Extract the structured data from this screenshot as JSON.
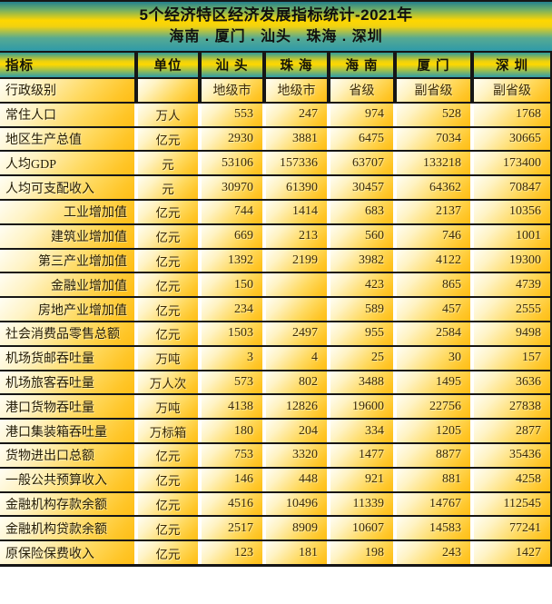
{
  "header": {
    "title": "5个经济特区经济发展指标统计-2021年",
    "subtitle": "海南 . 厦门 . 汕头 . 珠海 . 深圳"
  },
  "table": {
    "columns": [
      {
        "key": "indicator",
        "label": "指标"
      },
      {
        "key": "unit",
        "label": "单位"
      },
      {
        "key": "shantou",
        "label": "汕 头"
      },
      {
        "key": "zhuhai",
        "label": "珠 海"
      },
      {
        "key": "hainan",
        "label": "海 南"
      },
      {
        "key": "xiamen",
        "label": "厦 门"
      },
      {
        "key": "shenzhen",
        "label": "深 圳"
      }
    ],
    "rows": [
      {
        "indicator": "行政级别",
        "unit": "",
        "values": [
          "地级市",
          "地级市",
          "省级",
          "副省级",
          "副省级"
        ],
        "indent": false,
        "value_align": "center",
        "dark_separators": true
      },
      {
        "indicator": "常住人口",
        "unit": "万人",
        "values": [
          "553",
          "247",
          "974",
          "528",
          "1768"
        ],
        "indent": false
      },
      {
        "indicator": "地区生产总值",
        "unit": "亿元",
        "values": [
          "2930",
          "3881",
          "6475",
          "7034",
          "30665"
        ],
        "indent": false
      },
      {
        "indicator": "人均GDP",
        "unit": "元",
        "values": [
          "53106",
          "157336",
          "63707",
          "133218",
          "173400"
        ],
        "indent": false
      },
      {
        "indicator": "人均可支配收入",
        "unit": "元",
        "values": [
          "30970",
          "61390",
          "30457",
          "64362",
          "70847"
        ],
        "indent": false
      },
      {
        "indicator": "工业增加值",
        "unit": "亿元",
        "values": [
          "744",
          "1414",
          "683",
          "2137",
          "10356"
        ],
        "indent": true
      },
      {
        "indicator": "建筑业增加值",
        "unit": "亿元",
        "values": [
          "669",
          "213",
          "560",
          "746",
          "1001"
        ],
        "indent": true
      },
      {
        "indicator": "第三产业增加值",
        "unit": "亿元",
        "values": [
          "1392",
          "2199",
          "3982",
          "4122",
          "19300"
        ],
        "indent": true
      },
      {
        "indicator": "金融业增加值",
        "unit": "亿元",
        "values": [
          "150",
          "",
          "423",
          "865",
          "4739"
        ],
        "indent": true
      },
      {
        "indicator": "房地产业增加值",
        "unit": "亿元",
        "values": [
          "234",
          "",
          "589",
          "457",
          "2555"
        ],
        "indent": true
      },
      {
        "indicator": "社会消费品零售总额",
        "unit": "亿元",
        "values": [
          "1503",
          "2497",
          "955",
          "2584",
          "9498"
        ],
        "indent": false
      },
      {
        "indicator": "机场货邮吞吐量",
        "unit": "万吨",
        "values": [
          "3",
          "4",
          "25",
          "30",
          "157"
        ],
        "indent": false
      },
      {
        "indicator": "机场旅客吞吐量",
        "unit": "万人次",
        "values": [
          "573",
          "802",
          "3488",
          "1495",
          "3636"
        ],
        "indent": false
      },
      {
        "indicator": "港口货物吞吐量",
        "unit": "万吨",
        "values": [
          "4138",
          "12826",
          "19600",
          "22756",
          "27838"
        ],
        "indent": false
      },
      {
        "indicator": "港口集装箱吞吐量",
        "unit": "万标箱",
        "values": [
          "180",
          "204",
          "334",
          "1205",
          "2877"
        ],
        "indent": false
      },
      {
        "indicator": "货物进出口总额",
        "unit": "亿元",
        "values": [
          "753",
          "3320",
          "1477",
          "8877",
          "35436"
        ],
        "indent": false
      },
      {
        "indicator": "一般公共预算收入",
        "unit": "亿元",
        "values": [
          "146",
          "448",
          "921",
          "881",
          "4258"
        ],
        "indent": false
      },
      {
        "indicator": "金融机构存款余额",
        "unit": "亿元",
        "values": [
          "4516",
          "10496",
          "11339",
          "14767",
          "112545"
        ],
        "indent": false
      },
      {
        "indicator": "金融机构贷款余额",
        "unit": "亿元",
        "values": [
          "2517",
          "8909",
          "10607",
          "14583",
          "77241"
        ],
        "indent": false
      },
      {
        "indicator": "原保险保费收入",
        "unit": "亿元",
        "values": [
          "123",
          "181",
          "198",
          "243",
          "1427"
        ],
        "indent": false
      }
    ]
  },
  "colors": {
    "band_teal": "#2E9AA9",
    "band_yellow": "#FFD700",
    "cell_gold": "#FFBD14",
    "cell_highlight": "#FFFEF4",
    "grid_line": "#161616",
    "text": "#3B2B06"
  }
}
